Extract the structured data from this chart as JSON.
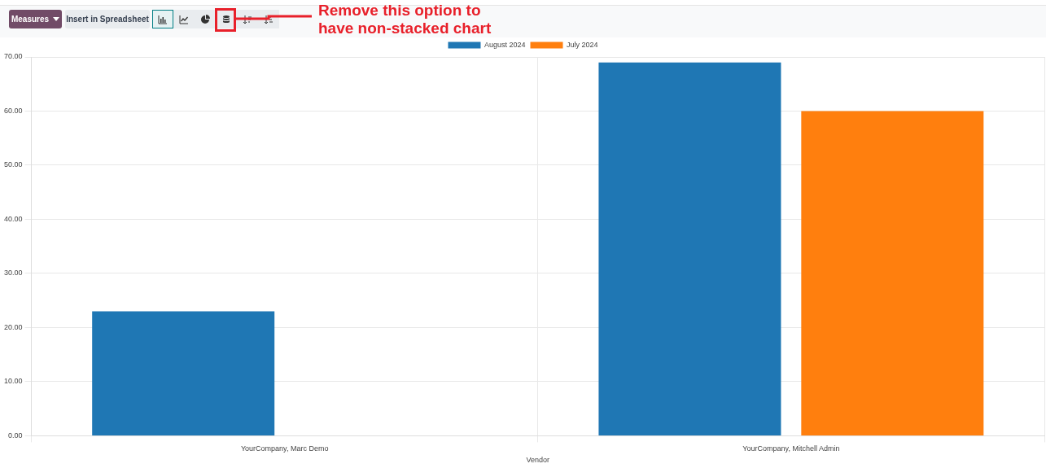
{
  "chart_data": {
    "type": "bar",
    "xlabel": "Vendor",
    "categories": [
      "YourCompany, Marc Demo",
      "YourCompany, Mitchell Admin"
    ],
    "series": [
      {
        "name": "August 2024",
        "color": "#1f77b4",
        "values": [
          23,
          69
        ]
      },
      {
        "name": "July 2024",
        "color": "#ff7f0e",
        "values": [
          null,
          60
        ]
      }
    ],
    "ylim": [
      0,
      70
    ],
    "yticks": [
      {
        "value": 0,
        "label": "0.00"
      },
      {
        "value": 10,
        "label": "10.00"
      },
      {
        "value": 20,
        "label": "20.00"
      },
      {
        "value": 30,
        "label": "30.00"
      },
      {
        "value": 40,
        "label": "40.00"
      },
      {
        "value": 50,
        "label": "50.00"
      },
      {
        "value": 60,
        "label": "60.00"
      },
      {
        "value": 70,
        "label": "70.00"
      }
    ],
    "grid": true,
    "legend": "top",
    "annotations": [
      "Measures",
      "Insert in Spreadsheet",
      "Remove this option to have non-stacked chart"
    ]
  }
}
